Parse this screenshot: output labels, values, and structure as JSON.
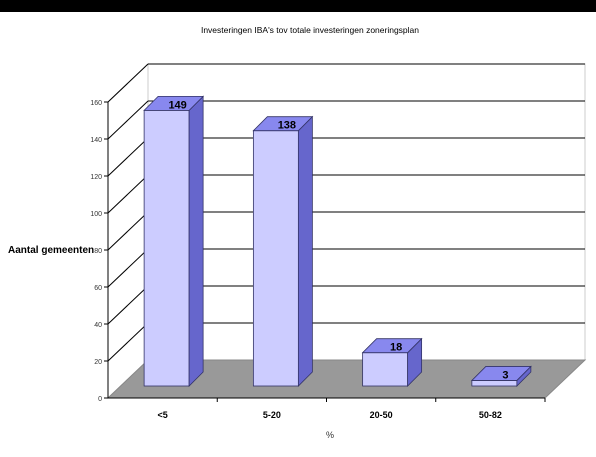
{
  "chart_data": {
    "type": "bar",
    "title": "Investeringen IBA's tov totale investeringen zoneringsplan",
    "xlabel": "%",
    "ylabel": "Aantal gemeenten",
    "categories": [
      "<5",
      "5-20",
      "20-50",
      "50-82"
    ],
    "values": [
      149,
      138,
      18,
      3
    ],
    "ylim": [
      0,
      160
    ],
    "yticks": [
      0,
      20,
      40,
      60,
      80,
      100,
      120,
      140,
      160
    ],
    "grid": true,
    "legend": "none",
    "colors": {
      "bar_front": "#ccccff",
      "bar_top": "#8888ee",
      "bar_side": "#6666cc",
      "floor": "#999999",
      "grid": "#000000",
      "back_wall": "#ffffff"
    }
  }
}
